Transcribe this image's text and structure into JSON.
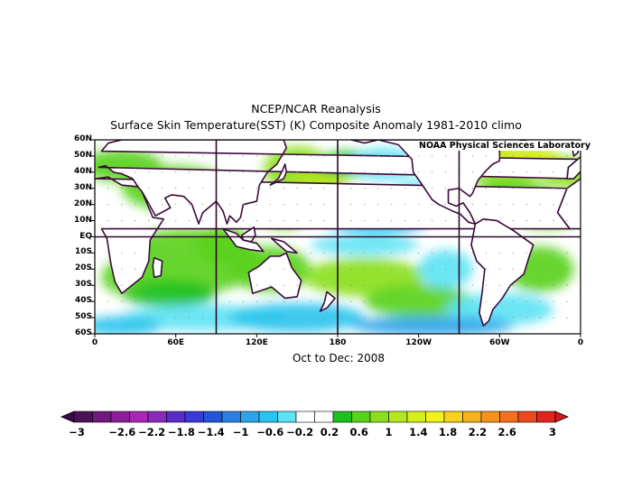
{
  "title": "NCEP/NCAR Reanalysis",
  "subtitle": "Surface Skin Temperature(SST) (K) Composite Anomaly 1981-2010 climo",
  "credit": "NOAA Physical Sciences Laboratory",
  "period": "Oct to Dec: 2008",
  "map": {
    "lon_range": [
      0,
      360
    ],
    "lat_range": [
      -60,
      60
    ],
    "lat_ticks": [
      "60N",
      "50N",
      "40N",
      "30N",
      "20N",
      "10N",
      "EQ",
      "10S",
      "20S",
      "30S",
      "40S",
      "50S",
      "60S"
    ],
    "lon_ticks": [
      "0",
      "60E",
      "120E",
      "180",
      "120W",
      "60W",
      "0"
    ],
    "ref_lines": {
      "equator": 0,
      "meridians": [
        90,
        180,
        270
      ]
    }
  },
  "anomaly_regions": [
    {
      "name": "north-pacific-warm",
      "lat": 35,
      "lon": 170,
      "value": 0.8
    },
    {
      "name": "east-pacific-cool",
      "lat": 10,
      "lon": 210,
      "value": -0.8
    },
    {
      "name": "tropical-pacific-cool",
      "lat": -5,
      "lon": 200,
      "value": -0.4
    },
    {
      "name": "south-pacific-warm",
      "lat": -25,
      "lon": 200,
      "value": 0.7
    },
    {
      "name": "north-atlantic-warm",
      "lat": 45,
      "lon": 330,
      "value": 1.4
    },
    {
      "name": "southern-ocean-cool",
      "lat": -52,
      "lon": 150,
      "value": -0.6
    },
    {
      "name": "indian-ocean-warm",
      "lat": -15,
      "lon": 70,
      "value": 0.6
    }
  ],
  "colorbar": {
    "labels": [
      "-3",
      "-2.6",
      "-2.2",
      "-1.8",
      "-1.4",
      "-1",
      "-0.6",
      "-0.2",
      "0.2",
      "0.6",
      "1",
      "1.4",
      "1.8",
      "2.2",
      "2.6",
      "3"
    ],
    "colors": [
      "#4b1258",
      "#72197e",
      "#8e1e98",
      "#a925b3",
      "#8b2ab8",
      "#5a2bc8",
      "#3a3ad6",
      "#2553d8",
      "#2a7fe0",
      "#2ca5e8",
      "#2bc4ee",
      "#5ee3f4",
      "#ffffff",
      "#ffffff",
      "#1ec01e",
      "#5ad21e",
      "#8adf1e",
      "#b4e71e",
      "#d6ef1e",
      "#f2f21e",
      "#f7d21e",
      "#f7b31e",
      "#f5921e",
      "#f2701e",
      "#ec4a1e",
      "#e0241e"
    ]
  }
}
